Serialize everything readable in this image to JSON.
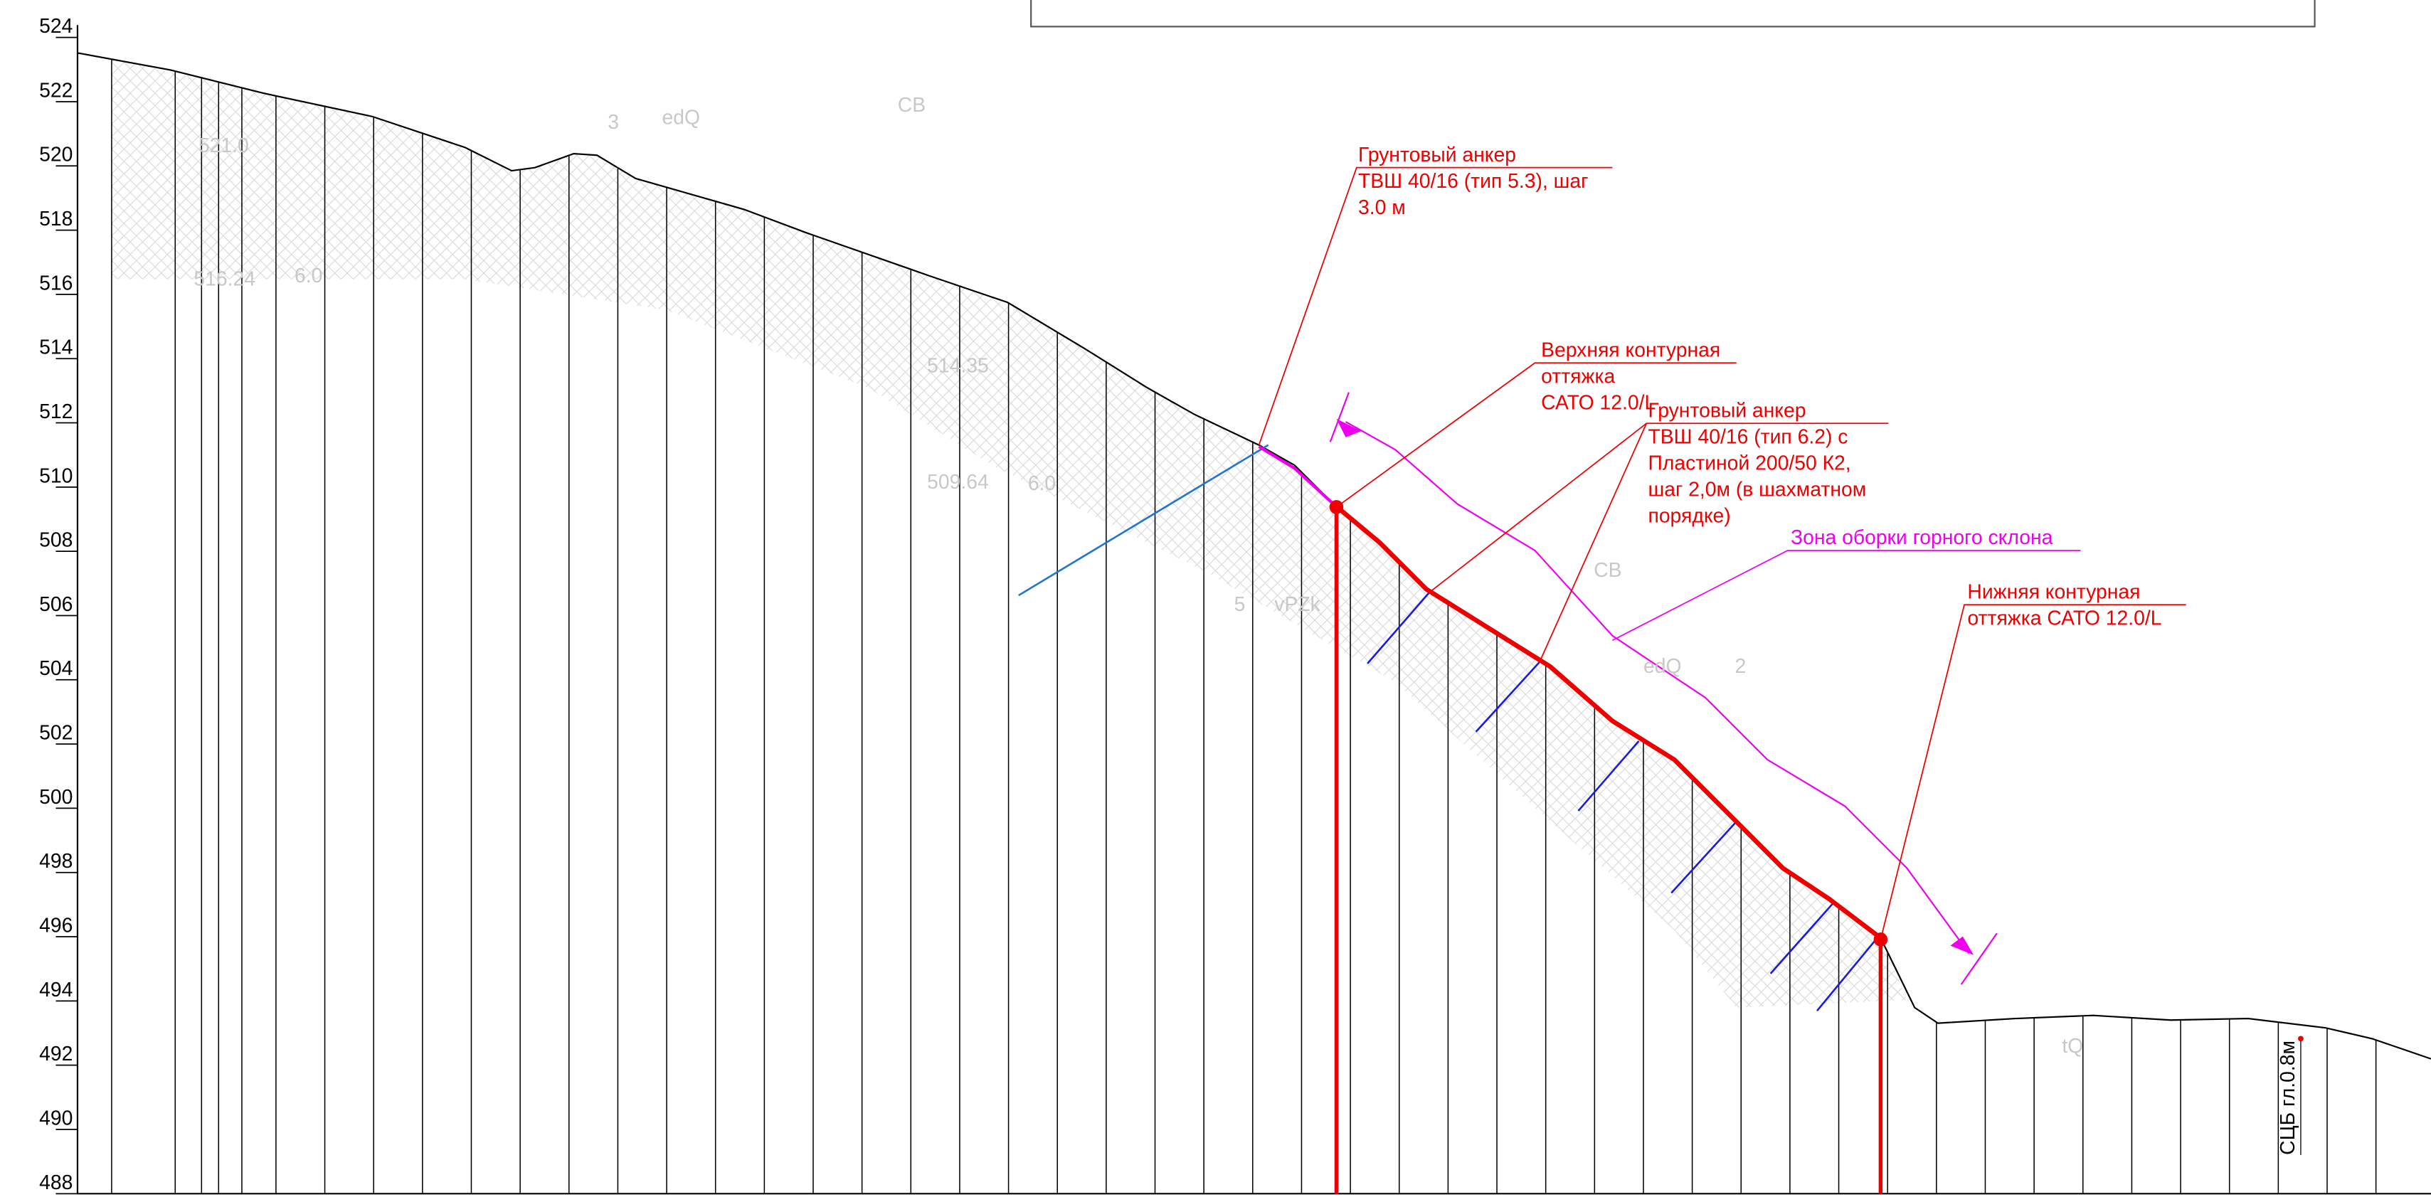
{
  "elevation_axis": {
    "ticks": [
      524,
      522,
      520,
      518,
      516,
      514,
      512,
      510,
      508,
      506,
      504,
      502,
      500,
      498,
      496,
      494,
      492,
      490,
      488
    ]
  },
  "callouts": [
    {
      "lines": [
        "Грунтовый анкер",
        "ТВШ 40/16 (тип 5.3), шаг",
        "3.0 м"
      ]
    },
    {
      "lines": [
        "Верхняя контурная",
        "оттяжка",
        "САТО 12.0/L"
      ]
    },
    {
      "lines": [
        "Грунтовый анкер",
        "ТВШ 40/16 (тип 6.2) с",
        "Пластиной 200/50 К2,",
        "шаг 2,0м (в шахматном",
        "порядке)"
      ]
    },
    {
      "lines": [
        "Зона оборки горного склона"
      ]
    },
    {
      "lines": [
        "Нижняя контурная",
        "оттяжка САТО 12.0/L"
      ]
    }
  ],
  "faint_labels": [
    "521.0",
    "516.24",
    "6.0",
    "514.35",
    "509.64",
    "6.0",
    "edQ",
    "СВ",
    "3",
    "СВ",
    "edQ",
    "2",
    "5",
    "vPZk",
    "tQ"
  ],
  "sign": "СЦБ гл.0.8м"
}
